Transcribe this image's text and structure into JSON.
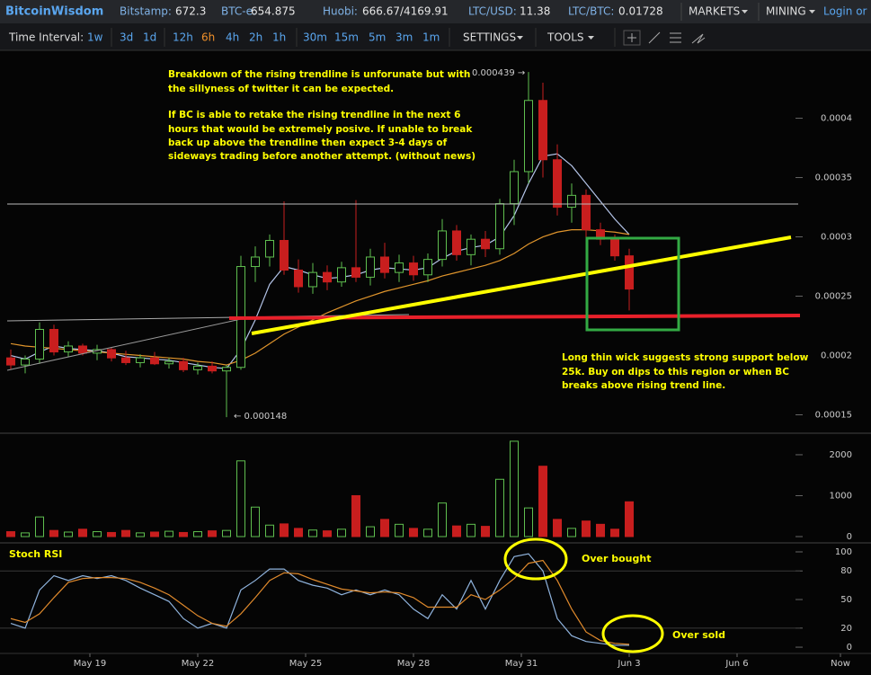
{
  "header": {
    "brand": "BitcoinWisdom",
    "tickers": [
      {
        "label": "Bitstamp:",
        "value": 672.3
      },
      {
        "label": "BTC-e:",
        "value": 654.875
      },
      {
        "label": "Huobi:",
        "value": "666.67/4169.91"
      },
      {
        "label": "LTC/USD:",
        "value": 11.38
      },
      {
        "label": "LTC/BTC:",
        "value": 0.01728
      }
    ],
    "menus": [
      "MARKETS",
      "MINING"
    ],
    "login": "Login or R"
  },
  "toolbar": {
    "label": "Time Interval:",
    "intervals": [
      "1w",
      "3d",
      "1d",
      "12h",
      "6h",
      "4h",
      "2h",
      "1h",
      "30m",
      "15m",
      "5m",
      "3m",
      "1m"
    ],
    "active": "6h",
    "settings": "SETTINGS",
    "tools": "TOOLS"
  },
  "chart_data": [
    {
      "type": "candlestick",
      "x": [
        16.8,
        17.2,
        17.6,
        18.0,
        18.4,
        18.8,
        19.2,
        19.6,
        20.0,
        20.4,
        20.8,
        21.2,
        21.6,
        22.0,
        22.4,
        22.8,
        23.2,
        23.6,
        24.0,
        24.4,
        24.8,
        25.2,
        25.6,
        26.0,
        26.4,
        26.8,
        27.2,
        27.6,
        28.0,
        28.4,
        28.8,
        29.2,
        29.6,
        30.0,
        30.4,
        30.8,
        31.2,
        31.6,
        32.0,
        32.4,
        32.8,
        33.2,
        33.6,
        34.0
      ],
      "open": [
        0.000198,
        0.000192,
        0.000197,
        0.000222,
        0.000203,
        0.000208,
        0.000202,
        0.000205,
        0.000198,
        0.000194,
        0.000198,
        0.000193,
        0.000195,
        0.000188,
        0.000191,
        0.000187,
        0.00019,
        0.000275,
        0.000283,
        0.000297,
        0.000272,
        0.000258,
        0.00027,
        0.000262,
        0.000274,
        0.000266,
        0.000283,
        0.00027,
        0.000278,
        0.000268,
        0.000281,
        0.000305,
        0.000285,
        0.000298,
        0.00029,
        0.000328,
        0.000355,
        0.000415,
        0.000365,
        0.000325,
        0.000335,
        0.000306,
        0.000298,
        0.000284
      ],
      "high": [
        0.000205,
        0.0002,
        0.000228,
        0.000226,
        0.000212,
        0.00021,
        0.000209,
        0.000207,
        0.000204,
        0.000201,
        0.000203,
        0.000198,
        0.000198,
        0.000194,
        0.000195,
        0.000192,
        0.000284,
        0.000292,
        0.000302,
        0.00033,
        0.000281,
        0.000278,
        0.000276,
        0.000279,
        0.000331,
        0.00029,
        0.000295,
        0.000285,
        0.000284,
        0.000286,
        0.000315,
        0.00031,
        0.000302,
        0.000305,
        0.000332,
        0.000365,
        0.000439,
        0.00043,
        0.000378,
        0.000345,
        0.00034,
        0.000312,
        0.000302,
        0.00029
      ],
      "low": [
        0.000188,
        0.000185,
        0.000193,
        0.0002,
        0.000199,
        0.0002,
        0.000196,
        0.000195,
        0.000192,
        0.00019,
        0.000192,
        0.000189,
        0.000186,
        0.000184,
        0.000185,
        0.000148,
        0.000188,
        0.000262,
        0.000275,
        0.000268,
        0.000253,
        0.000252,
        0.000255,
        0.000258,
        0.000262,
        0.000259,
        0.000265,
        0.000262,
        0.000263,
        0.000262,
        0.000275,
        0.00028,
        0.000276,
        0.000283,
        0.000285,
        0.00031,
        0.000345,
        0.00035,
        0.000318,
        0.000312,
        0.0003,
        0.000293,
        0.00028,
        0.000238
      ],
      "close": [
        0.000192,
        0.000197,
        0.000222,
        0.000203,
        0.000208,
        0.000202,
        0.000205,
        0.000198,
        0.000194,
        0.000198,
        0.000193,
        0.000195,
        0.000188,
        0.000191,
        0.000187,
        0.00019,
        0.000275,
        0.000283,
        0.000297,
        0.000272,
        0.000258,
        0.00027,
        0.000262,
        0.000274,
        0.000266,
        0.000283,
        0.00027,
        0.000278,
        0.000268,
        0.000281,
        0.000305,
        0.000285,
        0.000298,
        0.00029,
        0.000328,
        0.000355,
        0.000415,
        0.000365,
        0.000325,
        0.000335,
        0.000306,
        0.000298,
        0.000284,
        0.000256
      ],
      "up_color": "#5fbf4f",
      "down_color": "#c81e1e",
      "lines": [
        {
          "color": "#b4c4e8",
          "values": [
            0.0002,
            0.000197,
            0.000203,
            0.000208,
            0.000206,
            0.000205,
            0.000204,
            0.000202,
            0.000199,
            0.000198,
            0.000197,
            0.000196,
            0.000194,
            0.000192,
            0.00019,
            0.000189,
            0.000205,
            0.00023,
            0.00026,
            0.000275,
            0.000272,
            0.000268,
            0.000265,
            0.000266,
            0.000268,
            0.000272,
            0.000274,
            0.000273,
            0.000272,
            0.000274,
            0.000282,
            0.000288,
            0.000291,
            0.000293,
            0.0003,
            0.000318,
            0.000345,
            0.000368,
            0.00037,
            0.00036,
            0.000345,
            0.00033,
            0.000315,
            0.000302
          ]
        },
        {
          "color": "#e0952c",
          "values": [
            0.00021,
            0.000208,
            0.000207,
            0.000206,
            0.000205,
            0.000204,
            0.000203,
            0.000202,
            0.000201,
            0.0002,
            0.000199,
            0.000198,
            0.000197,
            0.000195,
            0.000194,
            0.000192,
            0.000196,
            0.000202,
            0.00021,
            0.000218,
            0.000224,
            0.00023,
            0.000236,
            0.000241,
            0.000246,
            0.00025,
            0.000254,
            0.000257,
            0.00026,
            0.000263,
            0.000267,
            0.00027,
            0.000273,
            0.000276,
            0.00028,
            0.000286,
            0.000294,
            0.0003,
            0.000304,
            0.000306,
            0.000306,
            0.000305,
            0.000304,
            0.000302
          ]
        }
      ],
      "xlim": [
        16.7,
        40.725
      ],
      "ylim": [
        0.000136,
        0.000458
      ],
      "yticks": [
        0.00015,
        0.0002,
        0.00025,
        0.0003,
        0.00035,
        0.0004
      ],
      "high_label": "0.000439 →",
      "low_label": "← 0.000148",
      "notes": [
        [
          "Breakdown of the rising trendline is unforunate but with",
          "the sillyness of twitter it can be expected."
        ],
        [
          "If BC is able to retake the rising trendline in the next 6",
          "hours that would be extremely posive. If unable to break",
          "back up above the trendline then expect 3-4 days of",
          "sideways trading before another attempt. (without news)"
        ],
        [
          "Long thin wick suggests strong support below",
          "25k. Buy on dips to this region or when BC",
          "breaks above rising trend line."
        ]
      ]
    },
    {
      "type": "bar",
      "values": [
        120,
        90,
        480,
        150,
        110,
        180,
        120,
        100,
        150,
        90,
        110,
        130,
        100,
        120,
        140,
        150,
        1850,
        720,
        280,
        310,
        200,
        160,
        140,
        180,
        1000,
        240,
        420,
        300,
        200,
        180,
        820,
        260,
        300,
        250,
        1400,
        2330,
        700,
        1720,
        420,
        200,
        380,
        300,
        180,
        850
      ],
      "xlim": [
        16.7,
        40.725
      ],
      "ylim": [
        -110,
        2460
      ],
      "yticks": [
        0,
        1000,
        2000
      ]
    },
    {
      "type": "line",
      "title": "Stoch RSI",
      "series": [
        {
          "color": "#8fb3dd",
          "values": [
            25,
            20,
            60,
            75,
            70,
            75,
            72,
            75,
            70,
            62,
            55,
            48,
            30,
            20,
            25,
            20,
            60,
            70,
            82,
            82,
            70,
            65,
            62,
            55,
            60,
            55,
            60,
            55,
            40,
            30,
            55,
            40,
            70,
            40,
            70,
            95,
            98,
            80,
            30,
            12,
            6,
            4,
            2,
            2
          ]
        },
        {
          "color": "#e08a2c",
          "values": [
            30,
            26,
            35,
            52,
            68,
            72,
            73,
            73,
            72,
            68,
            62,
            55,
            44,
            33,
            25,
            22,
            35,
            52,
            70,
            78,
            77,
            71,
            66,
            61,
            59,
            57,
            58,
            57,
            52,
            42,
            42,
            42,
            55,
            50,
            60,
            72,
            88,
            91,
            70,
            40,
            16,
            7,
            4,
            3
          ]
        }
      ],
      "xlim": [
        16.7,
        40.725
      ],
      "ylim": [
        -20.7,
        106.6
      ],
      "yticks": [
        0,
        20,
        50,
        80,
        100
      ],
      "bands": [
        20,
        80
      ],
      "xticks": [
        {
          "value": 19,
          "label": "May 19"
        },
        {
          "value": 22,
          "label": "May 22"
        },
        {
          "value": 25,
          "label": "May 25"
        },
        {
          "value": 28,
          "label": "May 28"
        },
        {
          "value": 31,
          "label": "May 31"
        },
        {
          "value": 34,
          "label": "Jun 3"
        },
        {
          "value": 37,
          "label": "Jun 6"
        },
        {
          "value": 39.875,
          "label": "Now"
        }
      ],
      "annotations": [
        "Over bought",
        "Over sold"
      ]
    }
  ]
}
